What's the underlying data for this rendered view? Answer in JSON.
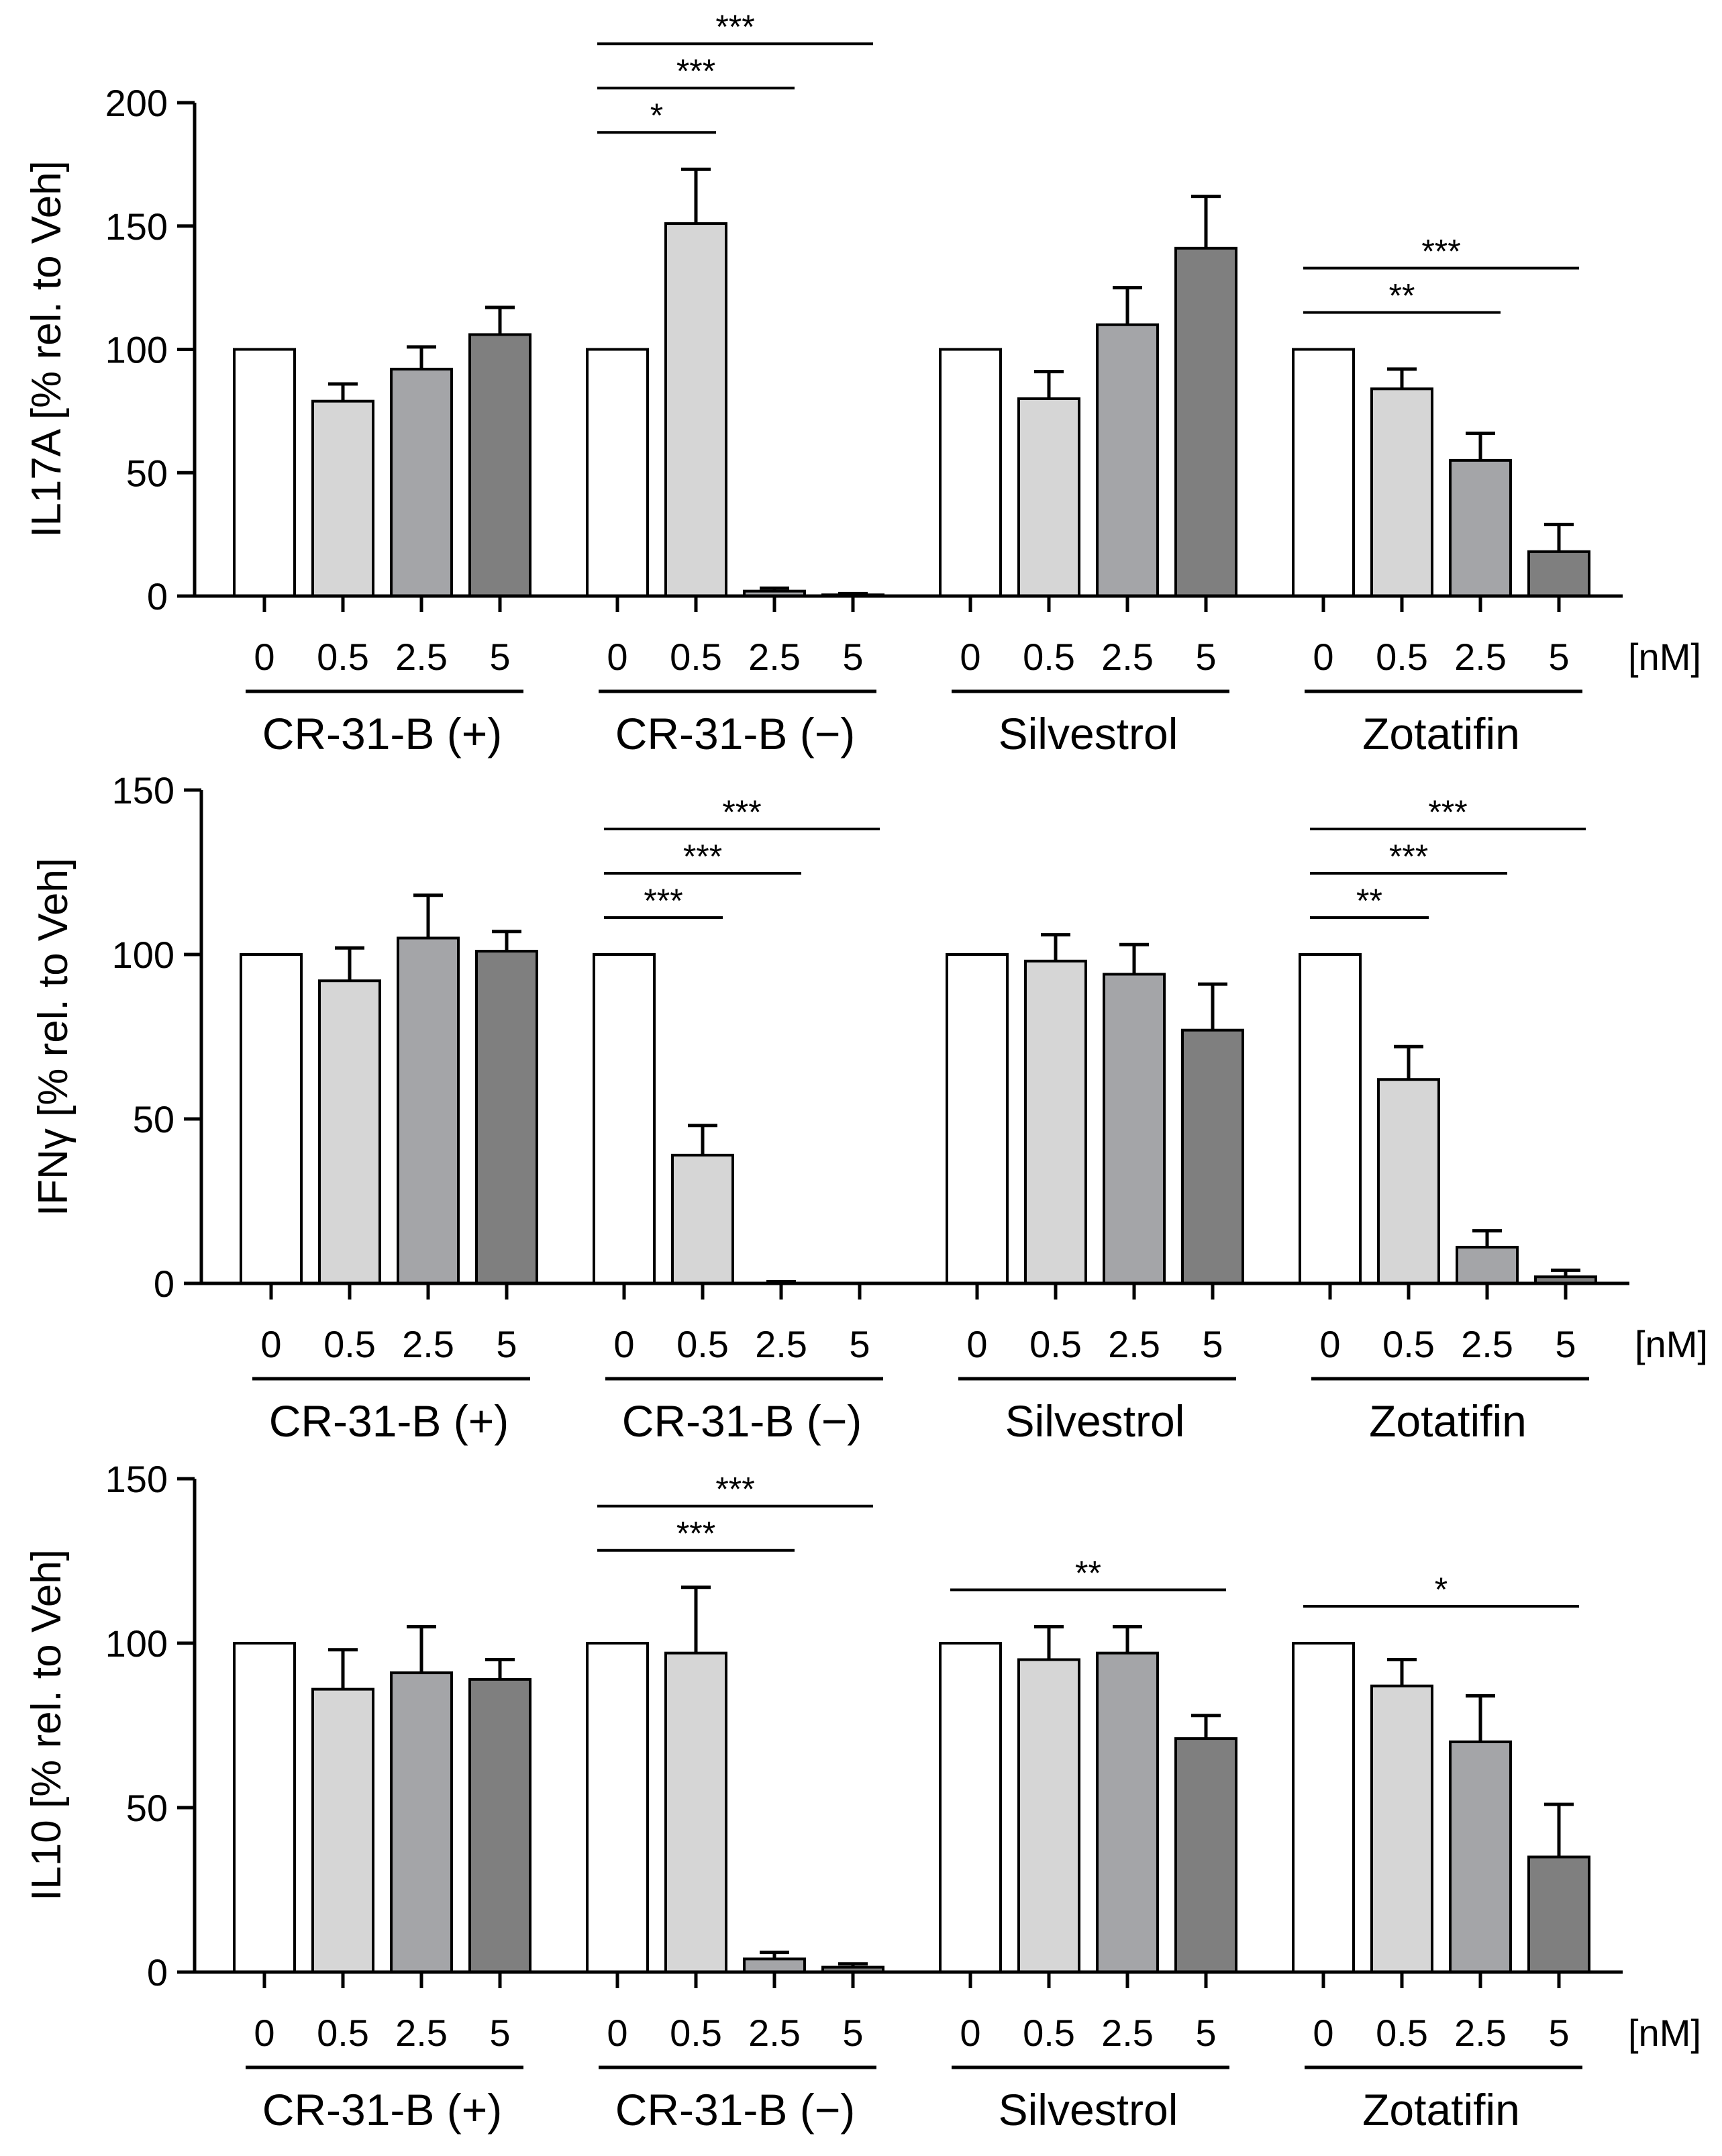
{
  "figure": {
    "unit_label": "[nM]"
  },
  "chart_data": [
    {
      "type": "bar",
      "ylabel": "IL17A [% rel. to Veh]",
      "ylim": [
        0,
        200
      ],
      "yticks": [
        0,
        50,
        100,
        150,
        200
      ],
      "doses": [
        "0",
        "0.5",
        "2.5",
        "5"
      ],
      "unit": "[nM]",
      "bar_colors": [
        "#ffffff",
        "#d6d6d6",
        "#a4a5a8",
        "#7f7f7f"
      ],
      "groups": [
        {
          "name": "CR-31-B (+)",
          "values": [
            100,
            79,
            92,
            106
          ],
          "errors": [
            0,
            7,
            9,
            11
          ]
        },
        {
          "name": "CR-31-B (−)",
          "values": [
            100,
            151,
            2,
            0.5
          ],
          "errors": [
            0,
            22,
            1.2,
            0.5
          ]
        },
        {
          "name": "Silvestrol",
          "values": [
            100,
            80,
            110,
            141
          ],
          "errors": [
            0,
            11,
            15,
            21
          ]
        },
        {
          "name": "Zotatifin",
          "values": [
            100,
            84,
            55,
            18
          ],
          "errors": [
            0,
            8,
            11,
            11
          ]
        }
      ],
      "significance": [
        {
          "group": 1,
          "from": 0,
          "to": 1,
          "label": "*"
        },
        {
          "group": 1,
          "from": 0,
          "to": 2,
          "label": "***"
        },
        {
          "group": 1,
          "from": 0,
          "to": 3,
          "label": "***"
        },
        {
          "group": 3,
          "from": 0,
          "to": 2,
          "label": "**"
        },
        {
          "group": 3,
          "from": 0,
          "to": 3,
          "label": "***"
        }
      ]
    },
    {
      "type": "bar",
      "ylabel": "IFNγ [% rel. to Veh]",
      "ylim": [
        0,
        150
      ],
      "yticks": [
        0,
        50,
        100,
        150
      ],
      "doses": [
        "0",
        "0.5",
        "2.5",
        "5"
      ],
      "unit": "[nM]",
      "bar_colors": [
        "#ffffff",
        "#d6d6d6",
        "#a4a5a8",
        "#7f7f7f"
      ],
      "groups": [
        {
          "name": "CR-31-B (+)",
          "values": [
            100,
            92,
            105,
            101
          ],
          "errors": [
            0,
            10,
            13,
            6
          ]
        },
        {
          "name": "CR-31-B (−)",
          "values": [
            100,
            39,
            0,
            0
          ],
          "errors": [
            0,
            9,
            0.5,
            0
          ]
        },
        {
          "name": "Silvestrol",
          "values": [
            100,
            98,
            94,
            77
          ],
          "errors": [
            0,
            8,
            9,
            14
          ]
        },
        {
          "name": "Zotatifin",
          "values": [
            100,
            62,
            11,
            2
          ],
          "errors": [
            0,
            10,
            5,
            2
          ]
        }
      ],
      "significance": [
        {
          "group": 1,
          "from": 0,
          "to": 1,
          "label": "***"
        },
        {
          "group": 1,
          "from": 0,
          "to": 2,
          "label": "***"
        },
        {
          "group": 1,
          "from": 0,
          "to": 3,
          "label": "***"
        },
        {
          "group": 3,
          "from": 0,
          "to": 1,
          "label": "**"
        },
        {
          "group": 3,
          "from": 0,
          "to": 2,
          "label": "***"
        },
        {
          "group": 3,
          "from": 0,
          "to": 3,
          "label": "***"
        }
      ]
    },
    {
      "type": "bar",
      "ylabel": "IL10 [% rel. to Veh]",
      "ylim": [
        0,
        150
      ],
      "yticks": [
        0,
        50,
        100,
        150
      ],
      "doses": [
        "0",
        "0.5",
        "2.5",
        "5"
      ],
      "unit": "[nM]",
      "bar_colors": [
        "#ffffff",
        "#d6d6d6",
        "#a4a5a8",
        "#7f7f7f"
      ],
      "groups": [
        {
          "name": "CR-31-B (+)",
          "values": [
            100,
            86,
            91,
            89
          ],
          "errors": [
            0,
            12,
            14,
            6
          ]
        },
        {
          "name": "CR-31-B (−)",
          "values": [
            100,
            97,
            4,
            1.5
          ],
          "errors": [
            0,
            20,
            2,
            1
          ]
        },
        {
          "name": "Silvestrol",
          "values": [
            100,
            95,
            97,
            71
          ],
          "errors": [
            0,
            10,
            8,
            7
          ]
        },
        {
          "name": "Zotatifin",
          "values": [
            100,
            87,
            70,
            35
          ],
          "errors": [
            0,
            8,
            14,
            16
          ]
        }
      ],
      "significance": [
        {
          "group": 1,
          "from": 0,
          "to": 2,
          "label": "***"
        },
        {
          "group": 1,
          "from": 0,
          "to": 3,
          "label": "***"
        },
        {
          "group": 2,
          "from": 0,
          "to": 3,
          "label": "**"
        },
        {
          "group": 3,
          "from": 0,
          "to": 3,
          "label": "*"
        }
      ]
    }
  ]
}
